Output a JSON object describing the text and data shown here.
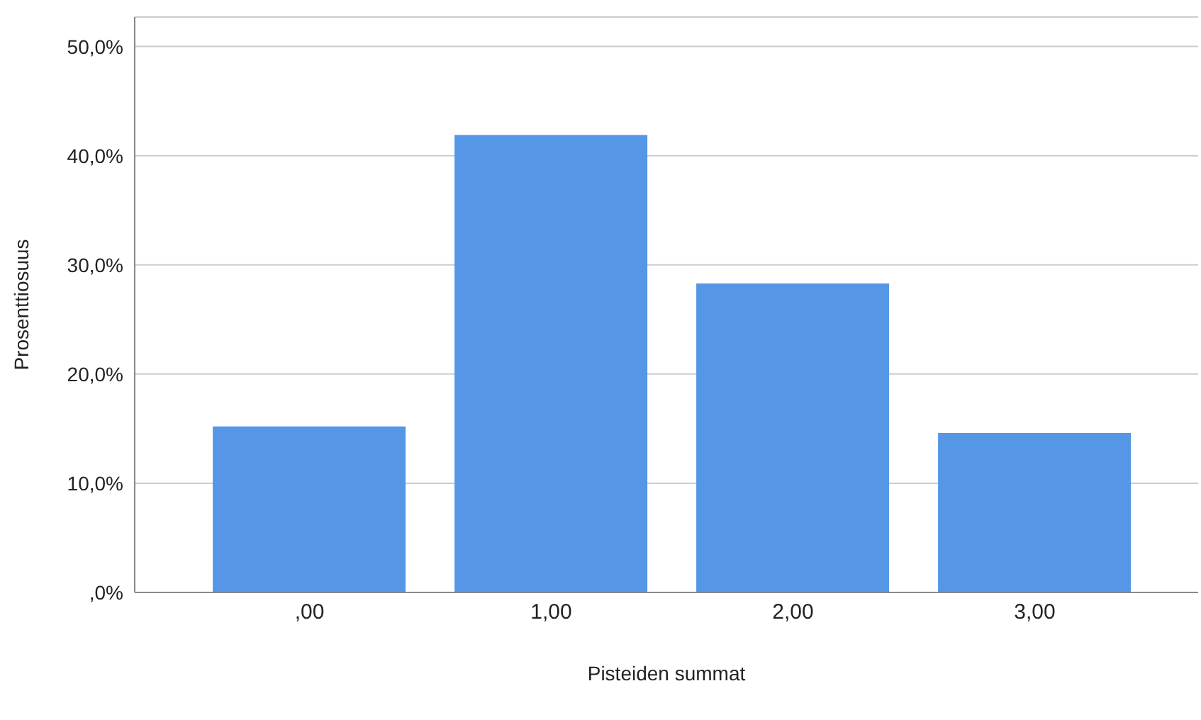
{
  "chart_data": {
    "type": "bar",
    "xlabel": "Pisteiden summat",
    "ylabel": "Prosenttiosuus",
    "categories": [
      ",00",
      "1,00",
      "2,00",
      "3,00"
    ],
    "values": [
      15.2,
      41.9,
      28.3,
      14.6
    ],
    "color": "#5596e6",
    "ylim": [
      0,
      52.7
    ],
    "yticks": [
      {
        "value": 0,
        "label": ",0%"
      },
      {
        "value": 10,
        "label": "10,0%"
      },
      {
        "value": 20,
        "label": "20,0%"
      },
      {
        "value": 30,
        "label": "30,0%"
      },
      {
        "value": 40,
        "label": "40,0%"
      },
      {
        "value": 50,
        "label": "50,0%"
      }
    ],
    "grid": "y"
  }
}
